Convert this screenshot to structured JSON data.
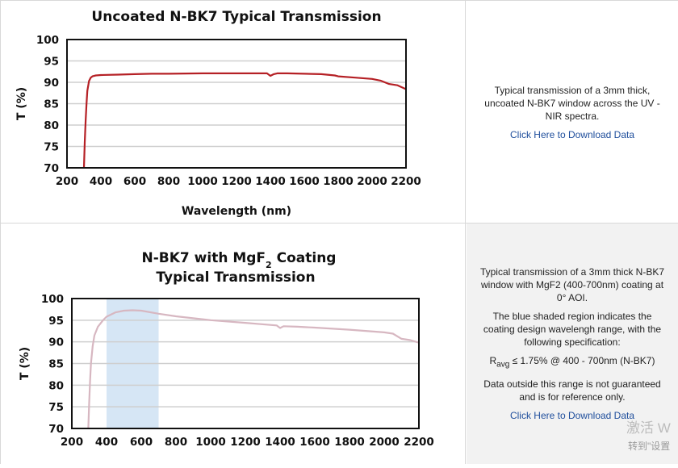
{
  "panels": [
    {
      "description": "Typical transmission of a 3mm thick, uncoated N-BK7 window across the UV - NIR spectra.",
      "link": "Click Here to Download Data"
    },
    {
      "description": "Typical transmission of a 3mm thick N-BK7 window with MgF2 (400-700nm) coating at 0° AOI.",
      "note": "The blue shaded region indicates the coating design wavelengh range, with the following specification:",
      "spec_r": "R",
      "spec_sub": "avg",
      "spec_rest": " ≤ 1.75% @ 400 - 700nm (N-BK7)",
      "disclaimer": "Data outside this range is not guaranteed and is for reference only.",
      "link": "Click Here to Download Data"
    }
  ],
  "watermark": {
    "line1": "激活 W",
    "line2": "转到\"设置"
  },
  "chart_data": [
    {
      "type": "line",
      "title": "Uncoated N-BK7 Typical Transmission",
      "xlabel": "Wavelength (nm)",
      "ylabel": "T (%)",
      "xlim": [
        200,
        2200
      ],
      "ylim": [
        70,
        100
      ],
      "xticks": [
        200,
        400,
        600,
        800,
        1000,
        1200,
        1400,
        1600,
        1800,
        2000,
        2200
      ],
      "yticks": [
        70,
        75,
        80,
        85,
        90,
        95,
        100
      ],
      "grid": true,
      "color": "#b52025",
      "series": [
        {
          "x": [
            300,
            305,
            310,
            315,
            320,
            330,
            340,
            350,
            370,
            400,
            500,
            600,
            700,
            800,
            1000,
            1200,
            1380,
            1400,
            1420,
            1440,
            1500,
            1600,
            1700,
            1780,
            1800,
            1900,
            2000,
            2050,
            2100,
            2150,
            2200
          ],
          "y": [
            70,
            76,
            81,
            85,
            88,
            90.3,
            91.1,
            91.4,
            91.6,
            91.7,
            91.8,
            91.9,
            92.0,
            92.0,
            92.1,
            92.1,
            92.1,
            91.5,
            91.9,
            92.1,
            92.1,
            92.0,
            91.9,
            91.6,
            91.4,
            91.1,
            90.8,
            90.4,
            89.6,
            89.3,
            88.4
          ]
        }
      ]
    },
    {
      "type": "line",
      "title_main": "N-BK7 with MgF",
      "title_sub": "2",
      "title_rest": " Coating",
      "title_line2": "Typical Transmission",
      "xlabel": "",
      "ylabel": "T (%)",
      "xlim": [
        200,
        2200
      ],
      "ylim": [
        70,
        100
      ],
      "xticks": [
        200,
        400,
        600,
        800,
        1000,
        1200,
        1400,
        1600,
        1800,
        2000,
        2200
      ],
      "yticks": [
        70,
        75,
        80,
        85,
        90,
        95,
        100
      ],
      "grid": true,
      "color": "#d7b7c1",
      "shade_color": "#d6e6f5",
      "shaded_range": [
        400,
        700
      ],
      "series": [
        {
          "x": [
            295,
            300,
            305,
            310,
            320,
            330,
            350,
            380,
            400,
            450,
            500,
            550,
            600,
            700,
            800,
            1000,
            1200,
            1380,
            1400,
            1420,
            1500,
            1600,
            1800,
            2000,
            2050,
            2100,
            2150,
            2200
          ],
          "y": [
            70,
            76,
            81,
            85,
            89,
            91.5,
            93.5,
            95,
            95.8,
            96.8,
            97.2,
            97.3,
            97.2,
            96.5,
            95.9,
            95.0,
            94.4,
            93.8,
            93.2,
            93.6,
            93.5,
            93.3,
            92.8,
            92.2,
            91.9,
            90.7,
            90.4,
            89.8
          ]
        }
      ]
    }
  ]
}
